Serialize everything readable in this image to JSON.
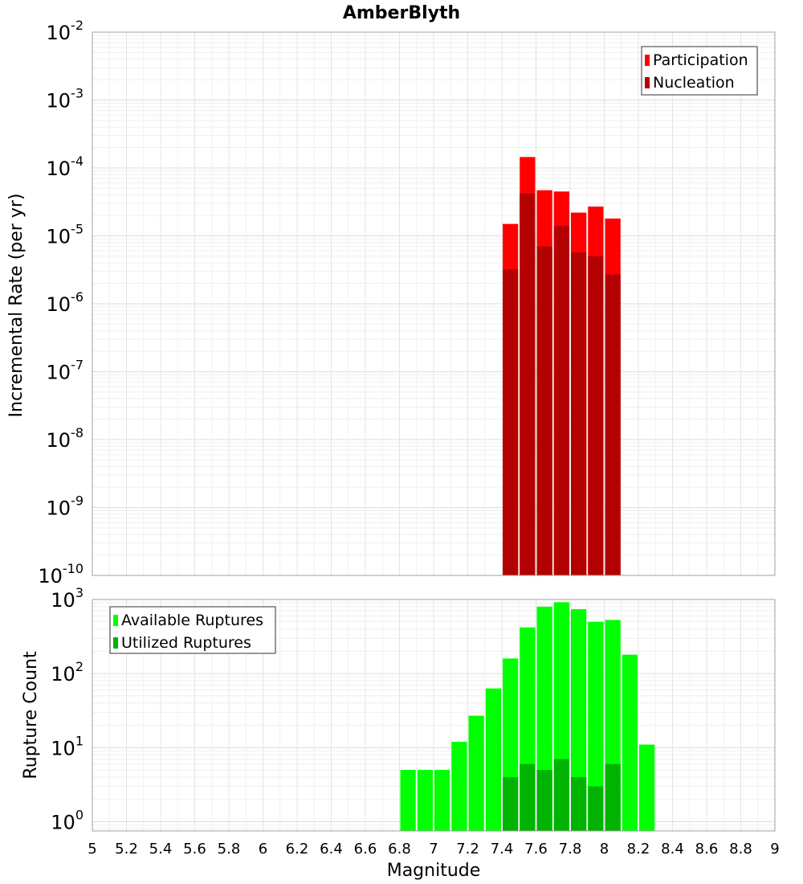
{
  "title": "AmberBlyth",
  "xlabel": "Magnitude",
  "x_ticks": [
    "5",
    "5.2",
    "5.4",
    "5.6",
    "5.8",
    "6",
    "6.2",
    "6.4",
    "6.6",
    "6.8",
    "7",
    "7.2",
    "7.4",
    "7.6",
    "7.8",
    "8",
    "8.2",
    "8.4",
    "8.6",
    "8.8",
    "9"
  ],
  "colors": {
    "participation": "#ff0000",
    "nucleation": "#b30000",
    "available": "#00ff00",
    "utilized": "#00b300",
    "grid": "#e6e6e6",
    "frame": "#a0a0a0"
  },
  "chart_data": [
    {
      "type": "bar",
      "panel": "top",
      "ylabel": "Incremental Rate (per yr)",
      "yscale": "log",
      "ylim": [
        1e-10,
        0.01
      ],
      "xlim": [
        5,
        9
      ],
      "y_ticks": [
        {
          "base": "10",
          "exp": "-10"
        },
        {
          "base": "10",
          "exp": "-9"
        },
        {
          "base": "10",
          "exp": "-8"
        },
        {
          "base": "10",
          "exp": "-7"
        },
        {
          "base": "10",
          "exp": "-6"
        },
        {
          "base": "10",
          "exp": "-5"
        },
        {
          "base": "10",
          "exp": "-4"
        },
        {
          "base": "10",
          "exp": "-3"
        },
        {
          "base": "10",
          "exp": "-2"
        }
      ],
      "legend_position": "top-right",
      "x": [
        7.45,
        7.55,
        7.65,
        7.75,
        7.85,
        7.95,
        8.05
      ],
      "series": [
        {
          "name": "Participation",
          "values": [
            1.5e-05,
            0.000145,
            4.7e-05,
            4.5e-05,
            2.2e-05,
            2.7e-05,
            1.8e-05
          ]
        },
        {
          "name": "Nucleation",
          "values": [
            3.2e-06,
            4.2e-05,
            7e-06,
            1.4e-05,
            5.7e-06,
            5e-06,
            2.7e-06
          ]
        }
      ]
    },
    {
      "type": "bar",
      "panel": "bottom",
      "ylabel": "Rupture Count",
      "yscale": "log",
      "ylim": [
        0.75,
        1000
      ],
      "xlim": [
        5,
        9
      ],
      "y_ticks": [
        {
          "base": "10",
          "exp": "0"
        },
        {
          "base": "10",
          "exp": "1"
        },
        {
          "base": "10",
          "exp": "2"
        },
        {
          "base": "10",
          "exp": "3"
        }
      ],
      "legend_position": "top-left",
      "x": [
        6.85,
        6.95,
        7.05,
        7.15,
        7.25,
        7.35,
        7.45,
        7.55,
        7.65,
        7.75,
        7.85,
        7.95,
        8.05,
        8.15,
        8.25
      ],
      "series": [
        {
          "name": "Available Ruptures",
          "values": [
            5,
            5,
            5,
            12,
            27,
            63,
            160,
            420,
            800,
            920,
            740,
            500,
            530,
            180,
            11
          ]
        },
        {
          "name": "Utilized Ruptures",
          "values": [
            0,
            0,
            0,
            0,
            0,
            0,
            4,
            6,
            5,
            7,
            4,
            3,
            6,
            0,
            0
          ]
        }
      ]
    }
  ]
}
